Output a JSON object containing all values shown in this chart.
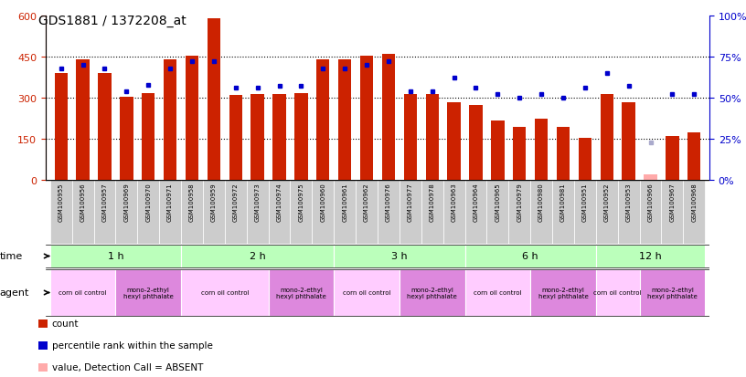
{
  "title": "GDS1881 / 1372208_at",
  "samples": [
    "GSM100955",
    "GSM100956",
    "GSM100957",
    "GSM100969",
    "GSM100970",
    "GSM100971",
    "GSM100958",
    "GSM100959",
    "GSM100972",
    "GSM100973",
    "GSM100974",
    "GSM100975",
    "GSM100960",
    "GSM100961",
    "GSM100962",
    "GSM100976",
    "GSM100977",
    "GSM100978",
    "GSM100963",
    "GSM100964",
    "GSM100965",
    "GSM100979",
    "GSM100980",
    "GSM100981",
    "GSM100951",
    "GSM100952",
    "GSM100953",
    "GSM100966",
    "GSM100967",
    "GSM100968"
  ],
  "counts": [
    390,
    440,
    390,
    305,
    318,
    440,
    455,
    590,
    310,
    315,
    315,
    318,
    440,
    440,
    455,
    460,
    315,
    315,
    285,
    275,
    218,
    195,
    225,
    195,
    155,
    315,
    285,
    20,
    160,
    175
  ],
  "percentile_ranks": [
    68,
    70,
    68,
    54,
    58,
    68,
    72,
    72,
    56,
    56,
    57,
    57,
    68,
    68,
    70,
    72,
    54,
    54,
    62,
    56,
    52,
    50,
    52,
    50,
    56,
    65,
    57,
    23,
    52,
    52
  ],
  "absent_mask": [
    false,
    false,
    false,
    false,
    false,
    false,
    false,
    false,
    false,
    false,
    false,
    false,
    false,
    false,
    false,
    false,
    false,
    false,
    false,
    false,
    false,
    false,
    false,
    false,
    false,
    false,
    false,
    true,
    false,
    false
  ],
  "absent_rank_mask": [
    false,
    false,
    false,
    false,
    false,
    false,
    false,
    false,
    false,
    false,
    false,
    false,
    false,
    false,
    false,
    false,
    false,
    false,
    false,
    false,
    false,
    false,
    false,
    false,
    false,
    false,
    false,
    true,
    false,
    false
  ],
  "time_groups": [
    {
      "label": "1 h",
      "start": 0,
      "end": 6
    },
    {
      "label": "2 h",
      "start": 6,
      "end": 13
    },
    {
      "label": "3 h",
      "start": 13,
      "end": 19
    },
    {
      "label": "6 h",
      "start": 19,
      "end": 25
    },
    {
      "label": "12 h",
      "start": 25,
      "end": 30
    }
  ],
  "agent_groups": [
    {
      "label": "corn oil control",
      "start": 0,
      "end": 3,
      "color": "#ffccff"
    },
    {
      "label": "mono-2-ethyl\nhexyl phthalate",
      "start": 3,
      "end": 6,
      "color": "#dd88dd"
    },
    {
      "label": "corn oil control",
      "start": 6,
      "end": 10,
      "color": "#ffccff"
    },
    {
      "label": "mono-2-ethyl\nhexyl phthalate",
      "start": 10,
      "end": 13,
      "color": "#dd88dd"
    },
    {
      "label": "corn oil control",
      "start": 13,
      "end": 16,
      "color": "#ffccff"
    },
    {
      "label": "mono-2-ethyl\nhexyl phthalate",
      "start": 16,
      "end": 19,
      "color": "#dd88dd"
    },
    {
      "label": "corn oil control",
      "start": 19,
      "end": 22,
      "color": "#ffccff"
    },
    {
      "label": "mono-2-ethyl\nhexyl phthalate",
      "start": 22,
      "end": 25,
      "color": "#dd88dd"
    },
    {
      "label": "corn oil control",
      "start": 25,
      "end": 27,
      "color": "#ffccff"
    },
    {
      "label": "mono-2-ethyl\nhexyl phthalate",
      "start": 27,
      "end": 30,
      "color": "#dd88dd"
    }
  ],
  "bar_color": "#cc2200",
  "absent_bar_color": "#ffaaaa",
  "dot_color": "#0000cc",
  "absent_dot_color": "#aaaacc",
  "ylim_left": [
    0,
    600
  ],
  "ylim_right": [
    0,
    100
  ],
  "yticks_left": [
    0,
    150,
    300,
    450,
    600
  ],
  "yticks_right": [
    0,
    25,
    50,
    75,
    100
  ],
  "time_row_color": "#bbffbb",
  "time_row_color_alt": "#99ee99",
  "xlabel_bg": "#cccccc",
  "legend_items": [
    {
      "color": "#cc2200",
      "label": "count"
    },
    {
      "color": "#0000cc",
      "label": "percentile rank within the sample"
    },
    {
      "color": "#ffaaaa",
      "label": "value, Detection Call = ABSENT"
    },
    {
      "color": "#aaaacc",
      "label": "rank, Detection Call = ABSENT"
    }
  ]
}
